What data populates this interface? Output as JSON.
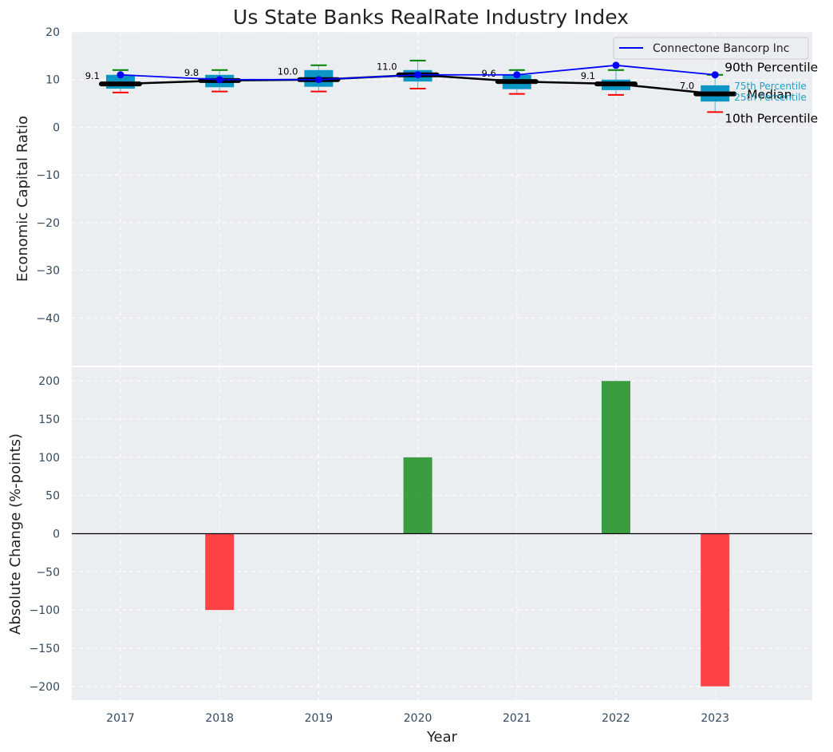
{
  "chart_data": {
    "title": "Us State Banks RealRate Industry Index",
    "xlabel": "Year",
    "top_panel": {
      "type": "box",
      "ylabel": "Economic Capital Ratio",
      "ylim": [
        -50,
        20
      ],
      "yticks": [
        20,
        10,
        0,
        -10,
        -20,
        -30,
        -40
      ],
      "categories": [
        "2017",
        "2018",
        "2019",
        "2020",
        "2021",
        "2022",
        "2023"
      ],
      "industry": {
        "p10": [
          7.3,
          7.5,
          7.5,
          8.1,
          7.0,
          6.8,
          3.2
        ],
        "p25": [
          8.1,
          8.4,
          8.5,
          9.6,
          8.0,
          7.8,
          5.4
        ],
        "median": [
          9.1,
          9.8,
          10.0,
          11.0,
          9.6,
          9.1,
          7.0
        ],
        "p75": [
          11.0,
          11.0,
          12.0,
          12.0,
          11.0,
          10.0,
          8.8
        ],
        "p90": [
          12.0,
          12.0,
          13.0,
          14.0,
          12.0,
          12.0,
          11.0
        ],
        "median_labels": [
          "9.1",
          "9.8",
          "10.0",
          "11.0",
          "9.6",
          "9.1",
          "7.0"
        ]
      },
      "series": [
        {
          "name": "Connectone Bancorp Inc",
          "values": [
            11,
            10,
            10,
            11,
            11,
            13,
            11
          ]
        }
      ],
      "annotations": {
        "p90": "90th Percentile",
        "p75": "75th Percentile",
        "median": "Median",
        "p25": "25th Percentile",
        "p10": "10th Percentile"
      },
      "legend_position": "top-right"
    },
    "bottom_panel": {
      "type": "bar",
      "ylabel": "Absolute Change (%-points)",
      "ylim": [
        -218,
        218
      ],
      "yticks": [
        200,
        150,
        100,
        50,
        0,
        -50,
        -100,
        -150,
        -200
      ],
      "categories": [
        "2017",
        "2018",
        "2019",
        "2020",
        "2021",
        "2022",
        "2023"
      ],
      "values": [
        0,
        -100,
        0,
        100,
        0,
        200,
        -200
      ]
    },
    "colors": {
      "panel_bg": "#eaeef0",
      "grid": "#ffffff",
      "box": "#0b96c6",
      "median": "#000000",
      "whisker_top": "#008000",
      "whisker_bottom": "#ff0000",
      "company_line": "#0000ff",
      "bar_positive": "#2a9630",
      "bar_negative": "#ff3336",
      "annotation_small": "#1aa3c8"
    }
  }
}
